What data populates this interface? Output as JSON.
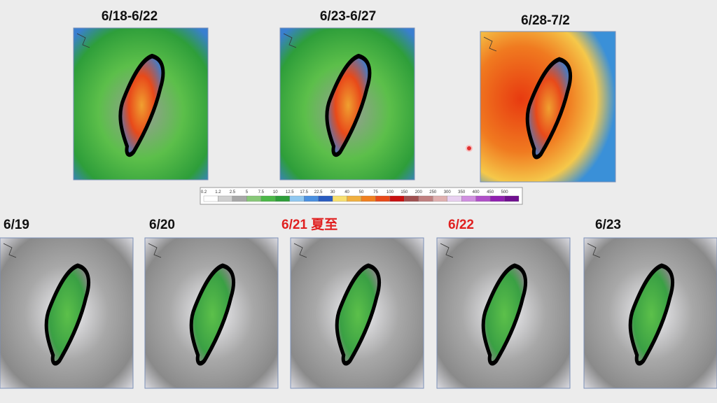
{
  "top_panels": [
    {
      "title": "6/18-6/22"
    },
    {
      "title": "6/23-6/27"
    },
    {
      "title": "6/28-7/2"
    }
  ],
  "scale": {
    "labels": [
      "0.2",
      "1.2",
      "2.5",
      "5",
      "7.5",
      "10",
      "12.5",
      "17.5",
      "22.5",
      "30",
      "40",
      "50",
      "75",
      "100",
      "150",
      "200",
      "250",
      "300",
      "350",
      "400",
      "450",
      "500"
    ]
  },
  "bottom_panels": [
    {
      "title": "6/19"
    },
    {
      "title": "6/20"
    },
    {
      "title": "6/21 夏至"
    },
    {
      "title": "6/22"
    },
    {
      "title": "6/23"
    }
  ]
}
